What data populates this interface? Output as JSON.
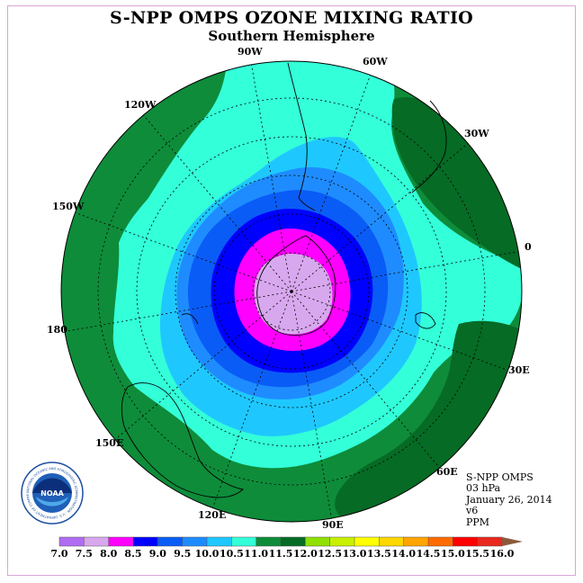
{
  "title": "S-NPP OMPS OZONE MIXING RATIO",
  "subtitle": "Southern Hemisphere",
  "longitude_labels": [
    "0",
    "30W",
    "60W",
    "90W",
    "120W",
    "150W",
    "180",
    "150E",
    "120E",
    "90E",
    "60E",
    "30E"
  ],
  "info": {
    "instrument": "S-NPP OMPS",
    "level": "03 hPa",
    "date": "January 26, 2014",
    "version": "v6",
    "units": "PPM"
  },
  "logo": {
    "text": "NOAA",
    "ring_text": "NATIONAL OCEANIC AND ATMOSPHERIC ADMINISTRATION · U.S. DEPARTMENT OF COMMERCE"
  },
  "colorbar": {
    "labels": [
      "7.0",
      "7.5",
      "8.0",
      "8.5",
      "9.0",
      "9.5",
      "10.0",
      "10.5",
      "11.0",
      "11.5",
      "12.0",
      "12.5",
      "13.0",
      "13.5",
      "14.0",
      "14.5",
      "15.0",
      "15.5",
      "16.0"
    ],
    "colors": [
      "#b06cf2",
      "#d8a8ee",
      "#ff00ff",
      "#0000ff",
      "#0a5cf6",
      "#1e8cff",
      "#1ec8ff",
      "#33ffd9",
      "#0e8c3a",
      "#066b25",
      "#90e000",
      "#c8f000",
      "#ffff00",
      "#ffd700",
      "#ffa500",
      "#ff6a00",
      "#ff0000",
      "#e8281e"
    ],
    "end_color": "#8b5a3c"
  },
  "map_colors": {
    "ge_11_0": "#0e8c3a",
    "ge_10_5": "#33ffd9",
    "ge_10_0": "#1ec8ff",
    "ge_9_5": "#1e8cff",
    "ge_9_0": "#0a5cf6",
    "ge_8_5": "#0000ff",
    "ge_8_0": "#ff00ff",
    "ge_7_5": "#d8a8ee",
    "ge_11_5": "#066b25"
  }
}
